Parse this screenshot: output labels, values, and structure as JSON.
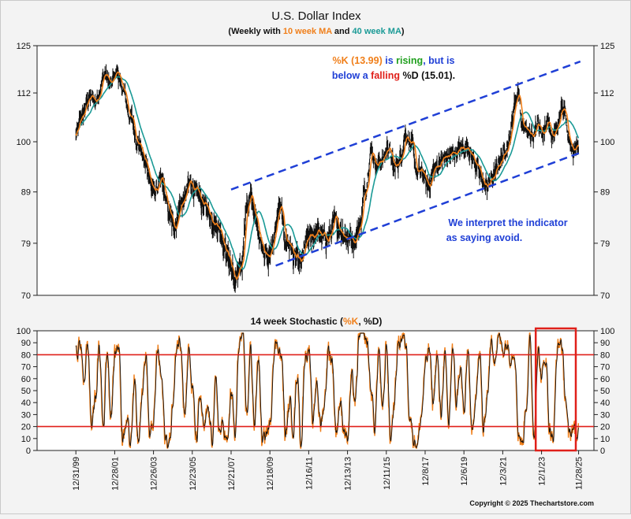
{
  "chart_data": [
    {
      "type": "line",
      "title": "U.S. Dollar Index",
      "subtitle": {
        "prefix": "(Weekly with ",
        "ma10": "10 week MA",
        "mid": " and ",
        "ma40": "40 week MA",
        "suffix": ")"
      },
      "y_scale": "log",
      "ylim": [
        70,
        125
      ],
      "y_ticks": [
        70,
        79,
        89,
        100,
        112,
        125
      ],
      "x_ticks": [
        "12/31/99",
        "12/28/01",
        "12/26/03",
        "12/23/05",
        "12/21/07",
        "12/18/09",
        "12/16/11",
        "12/13/13",
        "12/11/15",
        "12/8/17",
        "12/6/19",
        "12/3/21",
        "12/1/23",
        "11/28/25"
      ],
      "x_tick_years": [
        2000.0,
        2002.0,
        2004.0,
        2006.0,
        2008.0,
        2010.0,
        2012.0,
        2014.0,
        2016.0,
        2018.0,
        2020.0,
        2022.0,
        2024.0,
        2025.91
      ],
      "x_range_years": [
        1998.0,
        2026.7
      ],
      "series": [
        {
          "name": "10 week MA",
          "color": "#f07f1a"
        },
        {
          "name": "40 week MA",
          "color": "#1a9a96"
        }
      ],
      "price_anchors": [
        [
          2000.0,
          101.5
        ],
        [
          2000.3,
          106
        ],
        [
          2000.7,
          111
        ],
        [
          2001.0,
          110
        ],
        [
          2001.5,
          117
        ],
        [
          2001.8,
          114
        ],
        [
          2002.1,
          118
        ],
        [
          2002.4,
          113
        ],
        [
          2002.8,
          106
        ],
        [
          2003.2,
          100
        ],
        [
          2003.6,
          95
        ],
        [
          2004.0,
          89
        ],
        [
          2004.4,
          91
        ],
        [
          2004.8,
          85
        ],
        [
          2005.0,
          82
        ],
        [
          2005.5,
          87
        ],
        [
          2005.9,
          91
        ],
        [
          2006.3,
          88
        ],
        [
          2006.7,
          86
        ],
        [
          2007.0,
          84
        ],
        [
          2007.4,
          82
        ],
        [
          2007.8,
          77
        ],
        [
          2008.2,
          72.5
        ],
        [
          2008.5,
          74
        ],
        [
          2008.8,
          86
        ],
        [
          2009.0,
          88
        ],
        [
          2009.3,
          83
        ],
        [
          2009.6,
          79
        ],
        [
          2009.9,
          76
        ],
        [
          2010.2,
          80
        ],
        [
          2010.5,
          86
        ],
        [
          2010.8,
          80
        ],
        [
          2011.0,
          79
        ],
        [
          2011.3,
          76
        ],
        [
          2011.6,
          75
        ],
        [
          2011.8,
          78
        ],
        [
          2012.0,
          80
        ],
        [
          2012.4,
          81
        ],
        [
          2012.8,
          80
        ],
        [
          2013.0,
          80
        ],
        [
          2013.4,
          83
        ],
        [
          2013.8,
          81
        ],
        [
          2014.0,
          80
        ],
        [
          2014.4,
          80
        ],
        [
          2014.6,
          82
        ],
        [
          2014.9,
          89
        ],
        [
          2015.2,
          98
        ],
        [
          2015.5,
          95
        ],
        [
          2015.8,
          96
        ],
        [
          2016.1,
          99
        ],
        [
          2016.4,
          94
        ],
        [
          2016.7,
          96
        ],
        [
          2017.0,
          102
        ],
        [
          2017.3,
          99
        ],
        [
          2017.6,
          93
        ],
        [
          2017.9,
          93
        ],
        [
          2018.1,
          90
        ],
        [
          2018.5,
          94
        ],
        [
          2018.9,
          96
        ],
        [
          2019.3,
          97
        ],
        [
          2019.7,
          98
        ],
        [
          2020.2,
          99
        ],
        [
          2020.5,
          96
        ],
        [
          2020.9,
          92
        ],
        [
          2021.1,
          90
        ],
        [
          2021.5,
          92
        ],
        [
          2021.9,
          96
        ],
        [
          2022.3,
          100
        ],
        [
          2022.7,
          111
        ],
        [
          2022.8,
          112.5
        ],
        [
          2023.0,
          104
        ],
        [
          2023.3,
          102
        ],
        [
          2023.6,
          101
        ],
        [
          2023.8,
          106
        ],
        [
          2024.0,
          102
        ],
        [
          2024.3,
          105
        ],
        [
          2024.6,
          102
        ],
        [
          2024.9,
          104
        ],
        [
          2025.0,
          108
        ],
        [
          2025.2,
          106
        ],
        [
          2025.4,
          101
        ],
        [
          2025.6,
          98.5
        ],
        [
          2025.91,
          99.5
        ]
      ],
      "channel": {
        "color": "#1f3fd6",
        "upper": [
          [
            2008.0,
            89.5
          ],
          [
            2026.0,
            120.5
          ]
        ],
        "lower": [
          [
            2010.3,
            75.0
          ],
          [
            2026.0,
            97.5
          ]
        ]
      },
      "annotations": [
        {
          "parts": [
            {
              "text": "%K (13.99)",
              "color": "#f07f1a"
            },
            {
              "text": " is ",
              "color": "#1f3fd6"
            },
            {
              "text": "rising",
              "color": "#21a01f"
            },
            {
              "text": ", but is",
              "color": "#1f3fd6"
            }
          ]
        },
        {
          "parts": [
            {
              "text": "below a ",
              "color": "#1f3fd6"
            },
            {
              "text": "falling",
              "color": "#e0201a"
            },
            {
              "text": " %D (15.01).",
              "color": "#111111"
            }
          ]
        },
        {
          "parts": [
            {
              "text": "We interpret the indicator",
              "color": "#1f3fd6"
            }
          ]
        },
        {
          "parts": [
            {
              "text": "as saying avoid.",
              "color": "#1f3fd6"
            }
          ]
        }
      ]
    },
    {
      "type": "line",
      "title": {
        "prefix": "14 week Stochastic (",
        "k": "%K",
        "sep": ", ",
        "d": "%D",
        "suffix": ")"
      },
      "ylim": [
        0,
        100
      ],
      "y_ticks": [
        0,
        10,
        20,
        30,
        40,
        50,
        60,
        70,
        80,
        90,
        100
      ],
      "reference_lines": [
        20,
        80
      ],
      "reference_color": "#e0201a",
      "series": [
        {
          "name": "%K",
          "color": "#f07f1a"
        },
        {
          "name": "%D",
          "color": "#111111"
        }
      ],
      "stoch_anchors": [
        [
          2000.0,
          80
        ],
        [
          2000.2,
          90
        ],
        [
          2000.4,
          60
        ],
        [
          2000.6,
          88
        ],
        [
          2000.8,
          20
        ],
        [
          2001.0,
          45
        ],
        [
          2001.2,
          85
        ],
        [
          2001.4,
          20
        ],
        [
          2001.6,
          85
        ],
        [
          2001.8,
          30
        ],
        [
          2002.0,
          80
        ],
        [
          2002.2,
          90
        ],
        [
          2002.4,
          10
        ],
        [
          2002.6,
          30
        ],
        [
          2002.8,
          5
        ],
        [
          2003.0,
          60
        ],
        [
          2003.2,
          10
        ],
        [
          2003.4,
          50
        ],
        [
          2003.6,
          80
        ],
        [
          2003.8,
          10
        ],
        [
          2004.0,
          25
        ],
        [
          2004.2,
          85
        ],
        [
          2004.4,
          60
        ],
        [
          2004.6,
          10
        ],
        [
          2004.8,
          5
        ],
        [
          2005.0,
          40
        ],
        [
          2005.2,
          90
        ],
        [
          2005.4,
          92
        ],
        [
          2005.6,
          30
        ],
        [
          2005.8,
          85
        ],
        [
          2006.0,
          50
        ],
        [
          2006.2,
          8
        ],
        [
          2006.4,
          45
        ],
        [
          2006.6,
          15
        ],
        [
          2006.8,
          35
        ],
        [
          2007.0,
          10
        ],
        [
          2007.2,
          55
        ],
        [
          2007.4,
          15
        ],
        [
          2007.6,
          20
        ],
        [
          2007.8,
          5
        ],
        [
          2008.0,
          50
        ],
        [
          2008.2,
          10
        ],
        [
          2008.4,
          90
        ],
        [
          2008.6,
          95
        ],
        [
          2008.8,
          30
        ],
        [
          2009.0,
          85
        ],
        [
          2009.2,
          20
        ],
        [
          2009.4,
          80
        ],
        [
          2009.6,
          5
        ],
        [
          2009.8,
          15
        ],
        [
          2010.0,
          20
        ],
        [
          2010.2,
          85
        ],
        [
          2010.4,
          90
        ],
        [
          2010.6,
          75
        ],
        [
          2010.8,
          10
        ],
        [
          2011.0,
          40
        ],
        [
          2011.2,
          20
        ],
        [
          2011.4,
          65
        ],
        [
          2011.6,
          5
        ],
        [
          2011.8,
          80
        ],
        [
          2012.0,
          85
        ],
        [
          2012.2,
          20
        ],
        [
          2012.4,
          60
        ],
        [
          2012.6,
          20
        ],
        [
          2012.8,
          40
        ],
        [
          2013.0,
          85
        ],
        [
          2013.2,
          75
        ],
        [
          2013.4,
          15
        ],
        [
          2013.6,
          40
        ],
        [
          2013.8,
          20
        ],
        [
          2014.0,
          10
        ],
        [
          2014.2,
          60
        ],
        [
          2014.4,
          40
        ],
        [
          2014.6,
          98
        ],
        [
          2014.8,
          97
        ],
        [
          2015.0,
          90
        ],
        [
          2015.2,
          50
        ],
        [
          2015.4,
          20
        ],
        [
          2015.6,
          85
        ],
        [
          2015.8,
          30
        ],
        [
          2016.0,
          90
        ],
        [
          2016.2,
          10
        ],
        [
          2016.4,
          40
        ],
        [
          2016.6,
          90
        ],
        [
          2016.8,
          95
        ],
        [
          2017.0,
          90
        ],
        [
          2017.2,
          30
        ],
        [
          2017.4,
          10
        ],
        [
          2017.6,
          5
        ],
        [
          2017.8,
          30
        ],
        [
          2018.0,
          70
        ],
        [
          2018.2,
          85
        ],
        [
          2018.4,
          40
        ],
        [
          2018.6,
          80
        ],
        [
          2018.8,
          30
        ],
        [
          2019.0,
          80
        ],
        [
          2019.2,
          20
        ],
        [
          2019.4,
          85
        ],
        [
          2019.6,
          40
        ],
        [
          2019.8,
          70
        ],
        [
          2020.0,
          30
        ],
        [
          2020.2,
          85
        ],
        [
          2020.4,
          10
        ],
        [
          2020.6,
          50
        ],
        [
          2020.8,
          80
        ],
        [
          2021.0,
          15
        ],
        [
          2021.2,
          50
        ],
        [
          2021.4,
          90
        ],
        [
          2021.6,
          80
        ],
        [
          2021.8,
          95
        ],
        [
          2022.0,
          85
        ],
        [
          2022.2,
          90
        ],
        [
          2022.4,
          80
        ],
        [
          2022.6,
          85
        ],
        [
          2022.8,
          15
        ],
        [
          2023.0,
          5
        ],
        [
          2023.2,
          40
        ],
        [
          2023.4,
          90
        ],
        [
          2023.6,
          10
        ],
        [
          2023.8,
          85
        ],
        [
          2024.0,
          60
        ],
        [
          2024.2,
          80
        ],
        [
          2024.4,
          20
        ],
        [
          2024.6,
          10
        ],
        [
          2024.8,
          85
        ],
        [
          2025.0,
          92
        ],
        [
          2025.2,
          50
        ],
        [
          2025.4,
          10
        ],
        [
          2025.6,
          20
        ],
        [
          2025.8,
          12
        ],
        [
          2025.91,
          14
        ]
      ],
      "highlight_box": {
        "color": "#e0201a",
        "x_range_years": [
          2023.7,
          2027.0
        ]
      }
    }
  ],
  "copyright": "Copyright © 2025 Thechartstore.com"
}
